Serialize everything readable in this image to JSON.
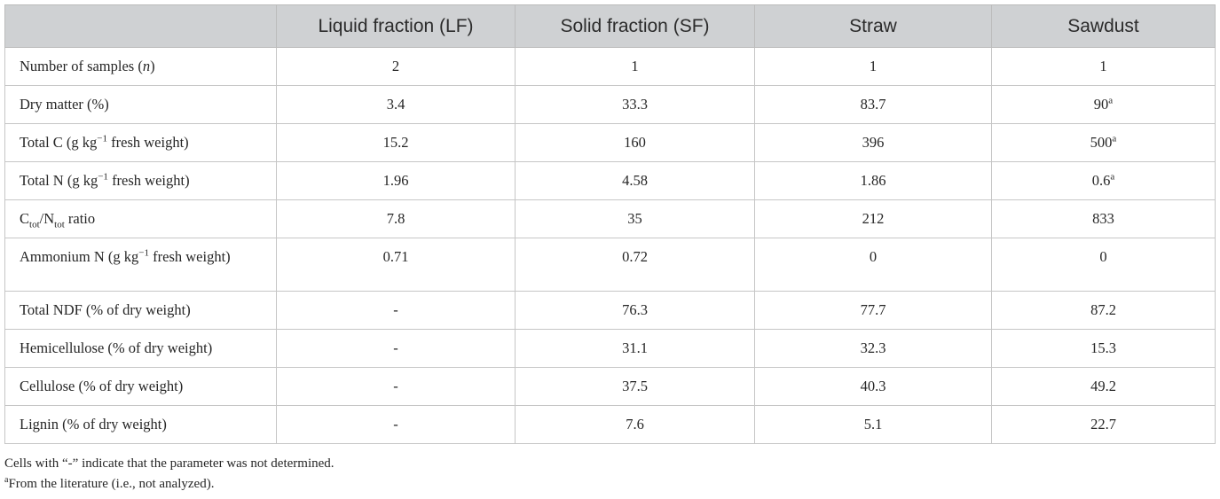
{
  "table": {
    "headers": [
      "",
      "Liquid fraction (LF)",
      "Solid fraction (SF)",
      "Straw",
      "Sawdust"
    ],
    "rows": [
      {
        "param": {
          "pre": "Number of samples (",
          "italic": "n",
          "post": ")"
        },
        "values": [
          "2",
          "1",
          "1",
          "1"
        ],
        "sups": [
          "",
          "",
          "",
          ""
        ]
      },
      {
        "param": {
          "text": "Dry matter (%)"
        },
        "values": [
          "3.4",
          "33.3",
          "83.7",
          "90"
        ],
        "sups": [
          "",
          "",
          "",
          "a"
        ]
      },
      {
        "param": {
          "pre": "Total C (g kg",
          "sup": "−1",
          "post": " fresh weight)"
        },
        "values": [
          "15.2",
          "160",
          "396",
          "500"
        ],
        "sups": [
          "",
          "",
          "",
          "a"
        ]
      },
      {
        "param": {
          "pre": "Total N (g kg",
          "sup": "−1",
          "post": " fresh weight)"
        },
        "values": [
          "1.96",
          "4.58",
          "1.86",
          "0.6"
        ],
        "sups": [
          "",
          "",
          "",
          "a"
        ]
      },
      {
        "param": {
          "c": "C",
          "c_sub": "tot",
          "slash": "/N",
          "n_sub": "tot",
          "post": " ratio"
        },
        "values": [
          "7.8",
          "35",
          "212",
          "833"
        ],
        "sups": [
          "",
          "",
          "",
          ""
        ]
      },
      {
        "param": {
          "pre": "Ammonium N (g kg",
          "sup": "−1",
          "post": " fresh weight)"
        },
        "values": [
          "0.71",
          "0.72",
          "0",
          "0"
        ],
        "sups": [
          "",
          "",
          "",
          ""
        ]
      },
      {
        "param": {
          "text": "Total NDF (% of dry weight)"
        },
        "values": [
          "-",
          "76.3",
          "77.7",
          "87.2"
        ],
        "sups": [
          "",
          "",
          "",
          ""
        ]
      },
      {
        "param": {
          "text": "Hemicellulose (% of dry weight)"
        },
        "values": [
          "-",
          "31.1",
          "32.3",
          "15.3"
        ],
        "sups": [
          "",
          "",
          "",
          ""
        ]
      },
      {
        "param": {
          "text": "Cellulose (% of dry weight)"
        },
        "values": [
          "-",
          "37.5",
          "40.3",
          "49.2"
        ],
        "sups": [
          "",
          "",
          "",
          ""
        ]
      },
      {
        "param": {
          "text": "Lignin (% of dry weight)"
        },
        "values": [
          "-",
          "7.6",
          "5.1",
          "22.7"
        ],
        "sups": [
          "",
          "",
          "",
          ""
        ]
      }
    ]
  },
  "footnotes": {
    "note1": "Cells with “-” indicate that the parameter was not determined.",
    "note2_mark": "a",
    "note2": "From the literature (i.e., not analyzed)."
  }
}
